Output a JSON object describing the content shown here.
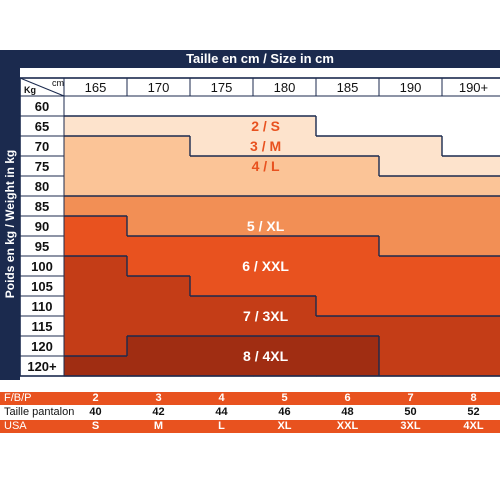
{
  "header": {
    "title": "Taille en cm / Size in cm",
    "kg_unit": "Kg",
    "cm_unit": "cm"
  },
  "side_label": "Poids en kg / Weight in kg",
  "heights": [
    "165",
    "170",
    "175",
    "180",
    "185",
    "190",
    "190+"
  ],
  "weights": [
    "60",
    "65",
    "70",
    "75",
    "80",
    "85",
    "90",
    "95",
    "100",
    "105",
    "110",
    "115",
    "120",
    "120+"
  ],
  "sizes": [
    {
      "label": "2 / S",
      "color": "#ffffff",
      "text_color": "#e8521f"
    },
    {
      "label": "3 / M",
      "color": "#fde3cc",
      "text_color": "#e8521f"
    },
    {
      "label": "4 / L",
      "color": "#fbc497",
      "text_color": "#e8521f"
    },
    {
      "label": "5 / XL",
      "color": "#f28f55",
      "text_color": "#ffffff"
    },
    {
      "label": "6 / XXL",
      "color": "#e8521f",
      "text_color": "#ffffff"
    },
    {
      "label": "7 / 3XL",
      "color": "#c43d17",
      "text_color": "#ffffff"
    },
    {
      "label": "8 / 4XL",
      "color": "#a02d12",
      "text_color": "#ffffff"
    }
  ],
  "size_grid": [
    [
      0,
      0,
      0,
      0,
      0,
      0,
      0
    ],
    [
      1,
      1,
      1,
      1,
      0,
      0,
      0
    ],
    [
      2,
      2,
      1,
      1,
      1,
      1,
      0
    ],
    [
      2,
      2,
      2,
      2,
      2,
      1,
      1
    ],
    [
      2,
      2,
      2,
      2,
      2,
      2,
      2
    ],
    [
      3,
      3,
      3,
      3,
      3,
      3,
      3
    ],
    [
      4,
      3,
      3,
      3,
      3,
      3,
      3
    ],
    [
      4,
      4,
      4,
      4,
      4,
      3,
      3
    ],
    [
      5,
      4,
      4,
      4,
      4,
      4,
      4
    ],
    [
      5,
      5,
      4,
      4,
      4,
      4,
      4
    ],
    [
      5,
      5,
      5,
      5,
      4,
      4,
      4
    ],
    [
      5,
      5,
      5,
      5,
      5,
      5,
      5
    ],
    [
      5,
      6,
      6,
      6,
      6,
      5,
      5
    ],
    [
      6,
      6,
      6,
      6,
      6,
      5,
      5
    ]
  ],
  "bottom_table": {
    "rows": [
      {
        "label": "F/B/P",
        "values": [
          "2",
          "3",
          "4",
          "5",
          "6",
          "7",
          "8"
        ],
        "bg": "#e8521f",
        "label_color": "#ffffff",
        "value_color": "#ffffff"
      },
      {
        "label": "Taille pantalon",
        "values": [
          "40",
          "42",
          "44",
          "46",
          "48",
          "50",
          "52"
        ],
        "bg": "#ffffff",
        "label_color": "#111111",
        "value_color": "#111111"
      },
      {
        "label": "USA",
        "values": [
          "S",
          "M",
          "L",
          "XL",
          "XXL",
          "3XL",
          "4XL"
        ],
        "bg": "#e8521f",
        "label_color": "#ffffff",
        "value_color": "#ffffff"
      }
    ]
  },
  "colors": {
    "navy": "#1b2a4e",
    "grid_line": "#1b2a4e"
  }
}
